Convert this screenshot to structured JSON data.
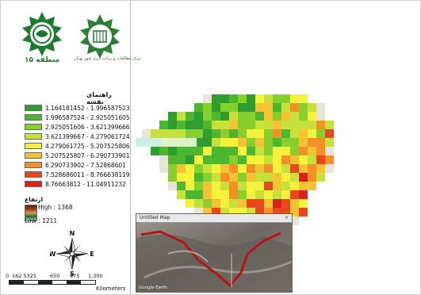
{
  "logos": {
    "left_caption": "منطقه ۱۵",
    "right_caption": "مرکز مطالعات و برنامه ریزی شهر تهران"
  },
  "legend": {
    "title": "راهنمای نقشه",
    "items": [
      {
        "label": "1.164181452 - 1.996587523",
        "color": "#2e9e2e"
      },
      {
        "label": "1.996587524 - 2.925051605",
        "color": "#4cb72f"
      },
      {
        "label": "2.925051606 - 3.621399666",
        "color": "#86cf2c"
      },
      {
        "label": "3.621399667 - 4.279061724",
        "color": "#c6e23a"
      },
      {
        "label": "4.279061725 - 5.207525806",
        "color": "#f4f23a"
      },
      {
        "label": "5.207525807 - 6.290733901",
        "color": "#f5c231"
      },
      {
        "label": "6.290733902 - 7.52868601",
        "color": "#f39126"
      },
      {
        "label": "7.528686011 - 8.766638119",
        "color": "#e9481e"
      },
      {
        "label": "8.76663812 - 11.04911232",
        "color": "#d8231c"
      }
    ]
  },
  "elevation": {
    "title": "ارتفاع",
    "high_label": "High : 1368",
    "low_label": "Low : 1211"
  },
  "compass": {
    "n": "N",
    "s": "S",
    "e": "E",
    "w": "W"
  },
  "scale": {
    "ticks": [
      "0",
      "162.5325",
      "650",
      "975",
      "1,300"
    ],
    "unit": "Kilometers"
  },
  "inset": {
    "title": "Untitled Map",
    "close": "×",
    "footer": "Google Earth"
  }
}
